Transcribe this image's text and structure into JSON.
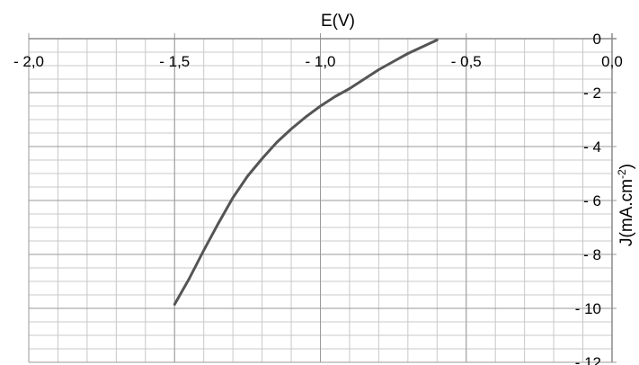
{
  "chart_data": {
    "type": "line",
    "xlabel": "E(V)",
    "ylabel": "J(mA.cm",
    "ylabel_sup": "-2",
    "ylabel_close": ")",
    "xlim": [
      -2.0,
      0.0
    ],
    "ylim": [
      -12,
      0
    ],
    "x_ticks": [
      {
        "value": -2.0,
        "label": "- 2,0"
      },
      {
        "value": -1.5,
        "label": "- 1,5"
      },
      {
        "value": -1.0,
        "label": "- 1,0"
      },
      {
        "value": -0.5,
        "label": "- 0,5"
      },
      {
        "value": 0.0,
        "label": "0,0"
      }
    ],
    "y_ticks": [
      {
        "value": 0,
        "label": "0"
      },
      {
        "value": -2,
        "label": "- 2"
      },
      {
        "value": -4,
        "label": "- 4"
      },
      {
        "value": -6,
        "label": "- 6"
      },
      {
        "value": -8,
        "label": "- 8"
      },
      {
        "value": -10,
        "label": "- 10"
      },
      {
        "value": -12,
        "label": "- 12"
      }
    ],
    "x_minor_step": 0.1,
    "y_minor_step": 0.5,
    "grid": true,
    "axis_position": "x-axis top, y-axis right",
    "line_color": "#555555",
    "grid_color": "#c8c8c8",
    "series": [
      {
        "x": [
          -1.5,
          -1.45,
          -1.4,
          -1.35,
          -1.3,
          -1.25,
          -1.2,
          -1.15,
          -1.1,
          -1.05,
          -1.0,
          -0.95,
          -0.9,
          -0.85,
          -0.8,
          -0.75,
          -0.7,
          -0.65,
          -0.6
        ],
        "y": [
          -9.85,
          -8.9,
          -7.85,
          -6.85,
          -5.9,
          -5.1,
          -4.45,
          -3.85,
          -3.35,
          -2.9,
          -2.5,
          -2.15,
          -1.85,
          -1.5,
          -1.15,
          -0.85,
          -0.55,
          -0.3,
          -0.05
        ]
      }
    ]
  }
}
